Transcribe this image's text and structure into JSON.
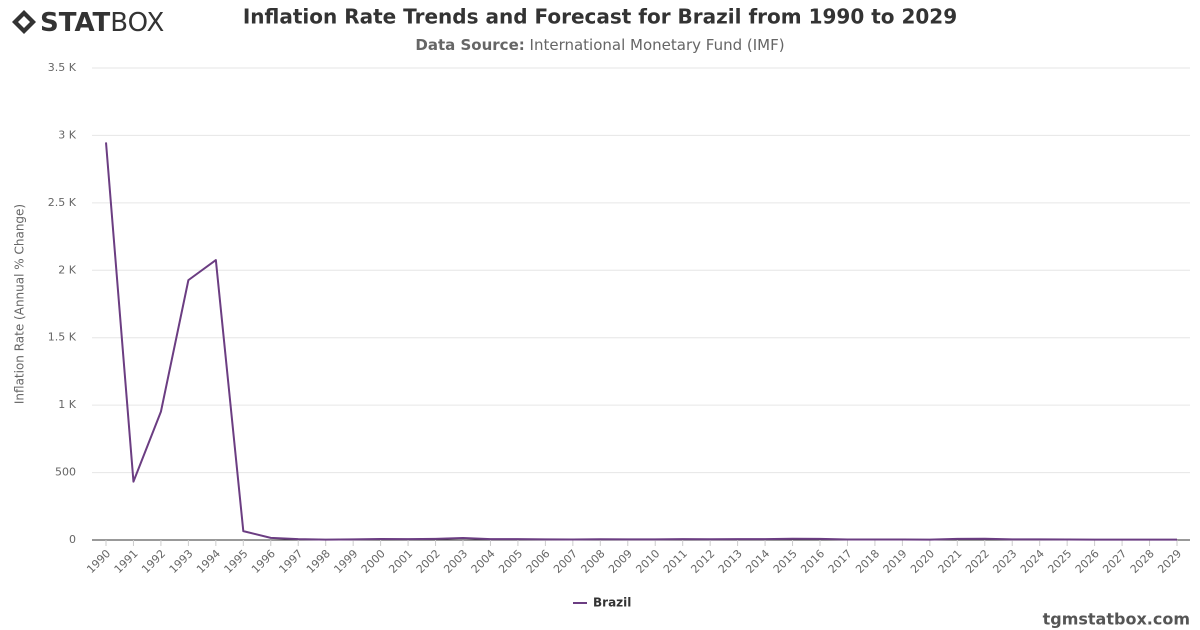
{
  "logo": {
    "bold": "STAT",
    "light": "BOX"
  },
  "watermark": "tgmstatbox.com",
  "chart_data": {
    "type": "line",
    "title": "Inflation Rate Trends and Forecast for Brazil from 1990 to 2029",
    "subtitle_label": "Data Source:",
    "subtitle": "International Monetary Fund (IMF)",
    "y_label": "Inflation Rate (Annual % Change)",
    "categories": [
      "1990",
      "1991",
      "1992",
      "1993",
      "1994",
      "1995",
      "1996",
      "1997",
      "1998",
      "1999",
      "2000",
      "2001",
      "2002",
      "2003",
      "2004",
      "2005",
      "2006",
      "2007",
      "2008",
      "2009",
      "2010",
      "2011",
      "2012",
      "2013",
      "2014",
      "2015",
      "2016",
      "2017",
      "2018",
      "2019",
      "2020",
      "2021",
      "2022",
      "2023",
      "2024",
      "2025",
      "2026",
      "2027",
      "2028",
      "2029"
    ],
    "series": [
      {
        "name": "Brazil",
        "color": "#6b3d82",
        "values": [
          2948,
          433,
          952,
          1927,
          2076,
          66,
          15.8,
          6.9,
          3.2,
          4.9,
          7.1,
          6.8,
          8.5,
          14.7,
          6.6,
          6.9,
          4.2,
          3.6,
          5.7,
          4.9,
          5.0,
          6.6,
          5.4,
          6.2,
          6.3,
          9.0,
          8.7,
          3.4,
          3.7,
          3.7,
          3.2,
          8.3,
          9.3,
          4.6,
          4.3,
          3.6,
          3.0,
          3.0,
          3.0,
          3.0
        ]
      }
    ],
    "ylim": [
      0,
      3500
    ],
    "yticks": [
      0,
      500,
      {
        "value": 1000,
        "label": "1 K"
      },
      {
        "value": 1500,
        "label": "1.5 K"
      },
      {
        "value": 2000,
        "label": "2 K"
      },
      {
        "value": 2500,
        "label": "2.5 K"
      },
      {
        "value": 3000,
        "label": "3 K"
      },
      {
        "value": 3500,
        "label": "3.5 K"
      }
    ],
    "grid": true,
    "legend": "bottom"
  }
}
